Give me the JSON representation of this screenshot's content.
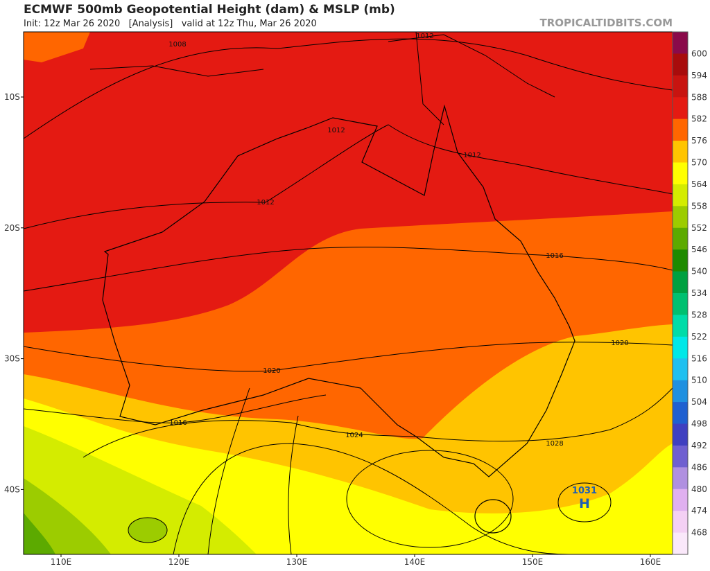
{
  "header": {
    "title": "ECMWF 500mb Geopotential Height (dam) & MSLP (mb)",
    "subtitle": "Init: 12z Mar 26 2020   [Analysis]   valid at 12z Thu, Mar 26 2020",
    "watermark": "TROPICALTIDBITS.COM"
  },
  "map": {
    "lat_labels": [
      "10S",
      "20S",
      "30S",
      "40S"
    ],
    "lon_labels": [
      "110E",
      "120E",
      "130E",
      "140E",
      "150E",
      "160E"
    ],
    "contour_labels": [
      "1008",
      "1012",
      "1012",
      "1012",
      "1012",
      "1016",
      "1020",
      "1020",
      "1016",
      "1024",
      "1028"
    ],
    "high": {
      "pressure": "1031",
      "label": "H"
    }
  },
  "colorbar": {
    "labels": [
      600,
      594,
      588,
      582,
      576,
      570,
      564,
      558,
      552,
      546,
      540,
      534,
      528,
      522,
      516,
      510,
      504,
      498,
      492,
      486,
      480,
      474,
      468
    ],
    "colors": [
      "#8a0a4a",
      "#a80c0c",
      "#c81410",
      "#e41a12",
      "#ff6600",
      "#ffc400",
      "#ffff00",
      "#d4ec00",
      "#9ccc00",
      "#5caa00",
      "#1e8a00",
      "#00a040",
      "#00c070",
      "#00dca8",
      "#00e8e8",
      "#20c0f0",
      "#2090e0",
      "#2060d0",
      "#4040c0",
      "#7060d0",
      "#b090e0",
      "#e0b0f0",
      "#f4d0f4",
      "#fae8fa"
    ]
  }
}
